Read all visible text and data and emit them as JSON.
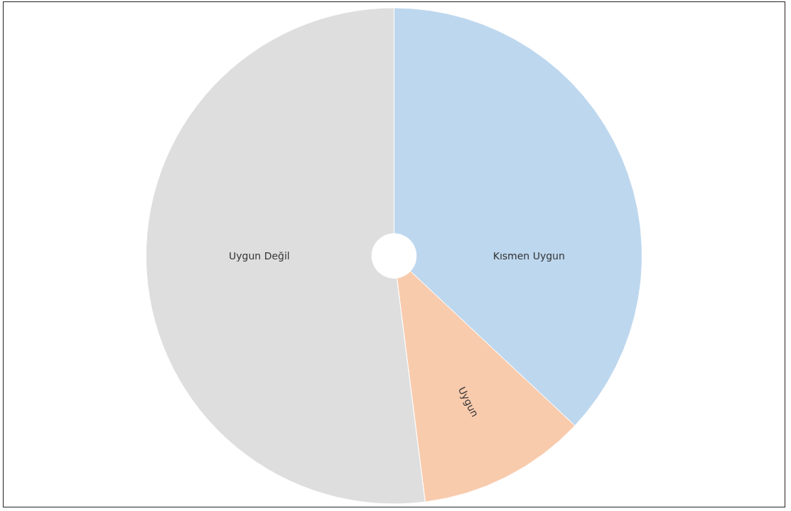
{
  "chart_data": {
    "type": "pie",
    "categories": [
      "Kısmen Uygun",
      "Uygun",
      "Uygun Değil"
    ],
    "values": [
      37,
      11,
      52
    ],
    "colors": [
      "#bdd7ee",
      "#f8cbad",
      "#dedede"
    ],
    "legend": false
  }
}
